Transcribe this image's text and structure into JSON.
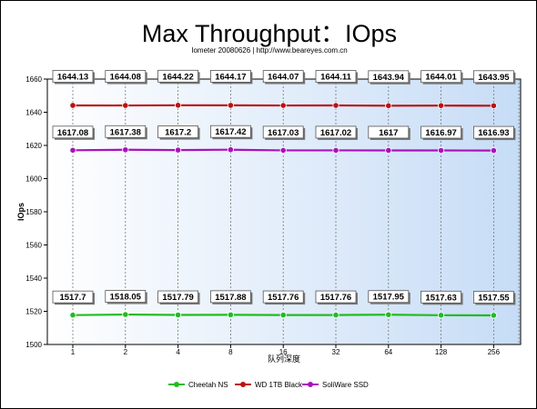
{
  "chart_data": {
    "type": "line",
    "title": "Max Throughput：IOps",
    "subtitle": "Iometer 20080626 | http://www.beareyes.com.cn",
    "xlabel": "队列深度",
    "ylabel": "IOps",
    "categories": [
      "1",
      "2",
      "4",
      "8",
      "16",
      "32",
      "64",
      "128",
      "256"
    ],
    "ylim": [
      1500,
      1660
    ],
    "yticks": [
      1500,
      1520,
      1540,
      1560,
      1580,
      1600,
      1620,
      1640,
      1660
    ],
    "grid": "dotted vertical",
    "legend_position": "bottom",
    "series": [
      {
        "name": "Cheetah NS",
        "color": "#22bb22",
        "values": [
          1517.7,
          1518.05,
          1517.79,
          1517.88,
          1517.76,
          1517.76,
          1517.95,
          1517.63,
          1517.55
        ],
        "labels": [
          "1517.7",
          "1518.05",
          "1517.79",
          "1517.88",
          "1517.76",
          "1517.76",
          "1517.95",
          "1517.63",
          "1517.55"
        ]
      },
      {
        "name": "WD 1TB Black",
        "color": "#bb1111",
        "values": [
          1644.13,
          1644.08,
          1644.22,
          1644.17,
          1644.07,
          1644.11,
          1643.94,
          1644.01,
          1643.95
        ],
        "labels": [
          "1644.13",
          "1644.08",
          "1644.22",
          "1644.17",
          "1644.07",
          "1644.11",
          "1643.94",
          "1644.01",
          "1643.95"
        ]
      },
      {
        "name": "SoliWare SSD",
        "color": "#aa11bb",
        "values": [
          1617.08,
          1617.38,
          1617.2,
          1617.42,
          1617.03,
          1617.02,
          1617,
          1616.97,
          1616.93
        ],
        "labels": [
          "1617.08",
          "1617.38",
          "1617.2",
          "1617.42",
          "1617.03",
          "1617.02",
          "1617",
          "1616.97",
          "1616.93"
        ]
      }
    ]
  }
}
